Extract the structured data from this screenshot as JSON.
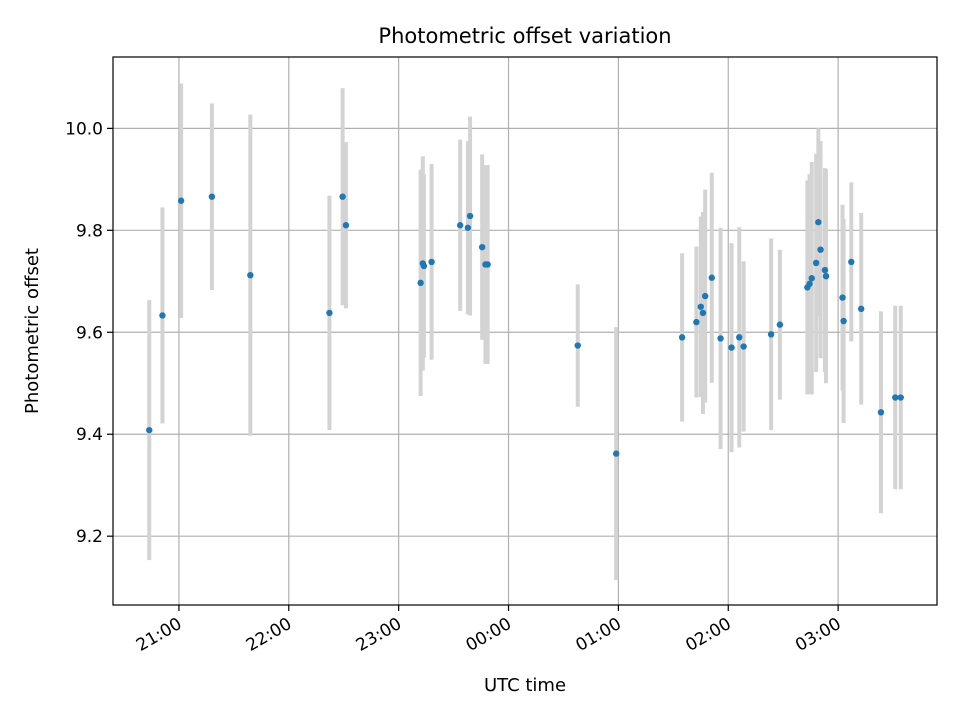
{
  "chart_data": {
    "type": "scatter",
    "title": "Photometric offset variation",
    "xlabel": "UTC time",
    "ylabel": "Photometric offset",
    "x_unit": "hours since 00:00 UTC",
    "xlim": [
      -3.6,
      3.9
    ],
    "ylim": [
      9.065,
      10.14
    ],
    "x_ticks": [
      {
        "value": -3,
        "label": "21:00"
      },
      {
        "value": -2,
        "label": "22:00"
      },
      {
        "value": -1,
        "label": "23:00"
      },
      {
        "value": 0,
        "label": "00:00"
      },
      {
        "value": 1,
        "label": "01:00"
      },
      {
        "value": 2,
        "label": "02:00"
      },
      {
        "value": 3,
        "label": "03:00"
      }
    ],
    "y_ticks": [
      {
        "value": 9.2,
        "label": "9.2"
      },
      {
        "value": 9.4,
        "label": "9.4"
      },
      {
        "value": 9.6,
        "label": "9.6"
      },
      {
        "value": 9.8,
        "label": "9.8"
      },
      {
        "value": 10.0,
        "label": "10.0"
      }
    ],
    "grid": true,
    "marker_color": "#1f77b4",
    "errorbar_color": "#d3d3d3",
    "points": [
      {
        "x": -3.27,
        "y": 9.408,
        "err": 0.255
      },
      {
        "x": -3.15,
        "y": 9.633,
        "err": 0.212
      },
      {
        "x": -2.98,
        "y": 9.858,
        "err": 0.23
      },
      {
        "x": -2.7,
        "y": 9.866,
        "err": 0.183
      },
      {
        "x": -2.35,
        "y": 9.712,
        "err": 0.315
      },
      {
        "x": -1.63,
        "y": 9.638,
        "err": 0.23
      },
      {
        "x": -1.51,
        "y": 9.866,
        "err": 0.213
      },
      {
        "x": -1.48,
        "y": 9.81,
        "err": 0.163
      },
      {
        "x": -0.8,
        "y": 9.697,
        "err": 0.222
      },
      {
        "x": -0.78,
        "y": 9.735,
        "err": 0.21
      },
      {
        "x": -0.77,
        "y": 9.73,
        "err": 0.18
      },
      {
        "x": -0.7,
        "y": 9.738,
        "err": 0.192
      },
      {
        "x": -0.44,
        "y": 9.81,
        "err": 0.168
      },
      {
        "x": -0.37,
        "y": 9.805,
        "err": 0.17
      },
      {
        "x": -0.35,
        "y": 9.828,
        "err": 0.195
      },
      {
        "x": -0.24,
        "y": 9.767,
        "err": 0.182
      },
      {
        "x": -0.21,
        "y": 9.733,
        "err": 0.195
      },
      {
        "x": -0.19,
        "y": 9.733,
        "err": 0.195
      },
      {
        "x": 0.63,
        "y": 9.574,
        "err": 0.12
      },
      {
        "x": 0.98,
        "y": 9.362,
        "err": 0.248
      },
      {
        "x": 1.58,
        "y": 9.59,
        "err": 0.165
      },
      {
        "x": 1.71,
        "y": 9.62,
        "err": 0.148
      },
      {
        "x": 1.75,
        "y": 9.65,
        "err": 0.177
      },
      {
        "x": 1.77,
        "y": 9.638,
        "err": 0.198
      },
      {
        "x": 1.79,
        "y": 9.671,
        "err": 0.209
      },
      {
        "x": 1.85,
        "y": 9.707,
        "err": 0.206
      },
      {
        "x": 1.93,
        "y": 9.588,
        "err": 0.217
      },
      {
        "x": 2.03,
        "y": 9.57,
        "err": 0.205
      },
      {
        "x": 2.1,
        "y": 9.59,
        "err": 0.216
      },
      {
        "x": 2.14,
        "y": 9.572,
        "err": 0.167
      },
      {
        "x": 2.39,
        "y": 9.596,
        "err": 0.188
      },
      {
        "x": 2.47,
        "y": 9.615,
        "err": 0.147
      },
      {
        "x": 2.72,
        "y": 9.688,
        "err": 0.21
      },
      {
        "x": 2.74,
        "y": 9.695,
        "err": 0.215
      },
      {
        "x": 2.76,
        "y": 9.706,
        "err": 0.228
      },
      {
        "x": 2.8,
        "y": 9.736,
        "err": 0.214
      },
      {
        "x": 2.82,
        "y": 9.816,
        "err": 0.184
      },
      {
        "x": 2.84,
        "y": 9.762,
        "err": 0.213
      },
      {
        "x": 2.88,
        "y": 9.722,
        "err": 0.2
      },
      {
        "x": 2.89,
        "y": 9.71,
        "err": 0.21
      },
      {
        "x": 3.04,
        "y": 9.668,
        "err": 0.182
      },
      {
        "x": 3.05,
        "y": 9.622,
        "err": 0.2
      },
      {
        "x": 3.12,
        "y": 9.738,
        "err": 0.156
      },
      {
        "x": 3.21,
        "y": 9.646,
        "err": 0.188
      },
      {
        "x": 3.39,
        "y": 9.443,
        "err": 0.198
      },
      {
        "x": 3.52,
        "y": 9.472,
        "err": 0.18
      },
      {
        "x": 3.57,
        "y": 9.472,
        "err": 0.18
      }
    ]
  }
}
